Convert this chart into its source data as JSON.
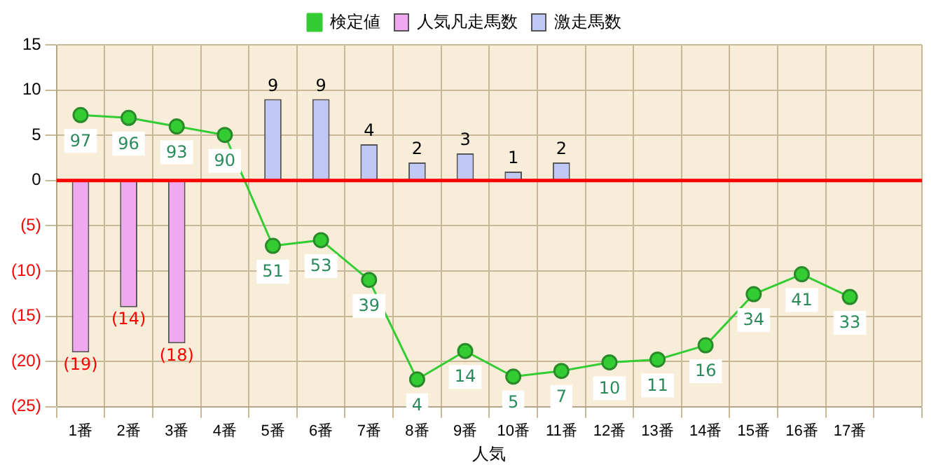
{
  "chart_data": {
    "type": "bar",
    "xlabel": "人気",
    "categories": [
      "1番",
      "2番",
      "3番",
      "4番",
      "5番",
      "6番",
      "7番",
      "8番",
      "9番",
      "10番",
      "11番",
      "12番",
      "13番",
      "14番",
      "15番",
      "16番",
      "17番",
      null
    ],
    "series": [
      {
        "name": "人気凡走馬数",
        "color": "#f0a8f0",
        "values": [
          -19,
          -14,
          -18,
          null,
          null,
          null,
          null,
          null,
          null,
          null,
          null,
          null,
          null,
          null,
          null,
          null,
          null,
          null
        ],
        "value_labels": [
          "(19)",
          "(14)",
          "(18)",
          null,
          null,
          null,
          null,
          null,
          null,
          null,
          null,
          null,
          null,
          null,
          null,
          null,
          null,
          null
        ]
      },
      {
        "name": "激走馬数",
        "color": "#c0c8f8",
        "values": [
          null,
          null,
          null,
          null,
          9,
          9,
          4,
          2,
          3,
          1,
          2,
          null,
          null,
          null,
          null,
          null,
          null,
          null
        ]
      },
      {
        "name": "検定値",
        "type": "line",
        "axis": "y2",
        "color": "#33cc33",
        "marker": "circle",
        "values": [
          97,
          96,
          93,
          90,
          51,
          53,
          39,
          4,
          14,
          5,
          7,
          10,
          11,
          16,
          34,
          41,
          33,
          null
        ]
      }
    ],
    "ylim": [
      -25,
      15
    ],
    "yticks": [
      {
        "value": -25,
        "label": "(25)"
      },
      {
        "value": -20,
        "label": "(20)"
      },
      {
        "value": -15,
        "label": "(15)"
      },
      {
        "value": -10,
        "label": "(10)"
      },
      {
        "value": -5,
        "label": "(5)"
      },
      0,
      5,
      10,
      15
    ],
    "y2lim": [
      -5.6,
      121.7
    ],
    "data_labels": true,
    "grid": true,
    "legend": "top",
    "ref_lines": [
      {
        "axis": "y",
        "value": 0,
        "color": "#ff0000"
      }
    ]
  }
}
